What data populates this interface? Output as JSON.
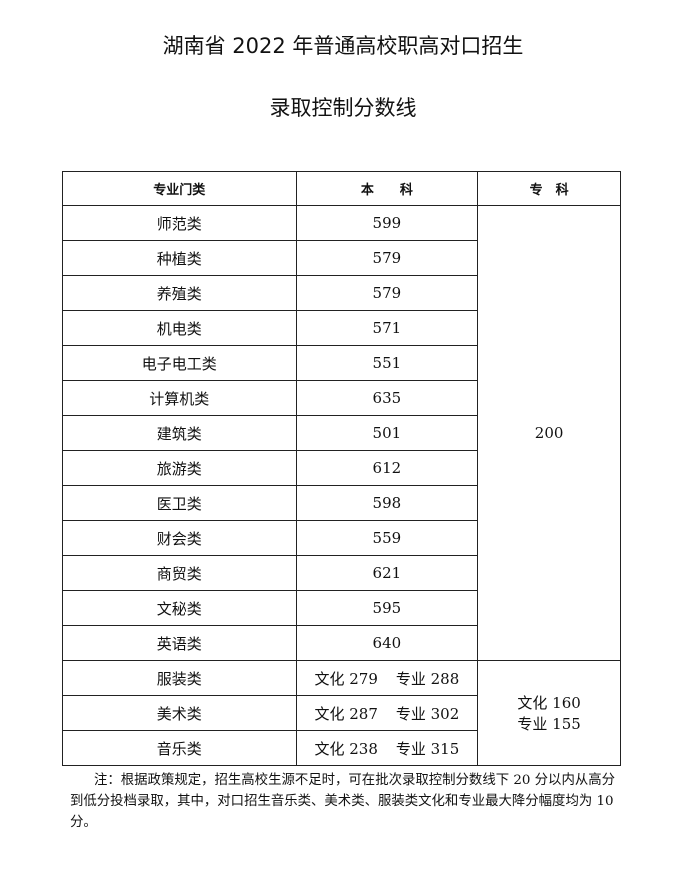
{
  "title_line1": "湖南省 2022 年普通高校职高对口招生",
  "title_line2": "录取控制分数线",
  "table": {
    "headers": [
      "专业门类",
      "本　　科",
      "专　科"
    ],
    "rows": [
      {
        "category": "师范类",
        "undergrad": "599"
      },
      {
        "category": "种植类",
        "undergrad": "579"
      },
      {
        "category": "养殖类",
        "undergrad": "579"
      },
      {
        "category": "机电类",
        "undergrad": "571"
      },
      {
        "category": "电子电工类",
        "undergrad": "551"
      },
      {
        "category": "计算机类",
        "undergrad": "635"
      },
      {
        "category": "建筑类",
        "undergrad": "501"
      },
      {
        "category": "旅游类",
        "undergrad": "612"
      },
      {
        "category": "医卫类",
        "undergrad": "598"
      },
      {
        "category": "财会类",
        "undergrad": "559"
      },
      {
        "category": "商贸类",
        "undergrad": "621"
      },
      {
        "category": "文秘类",
        "undergrad": "595"
      },
      {
        "category": "英语类",
        "undergrad": "640"
      }
    ],
    "junior_college_common": "200",
    "arts_rows": [
      {
        "category": "服装类",
        "culture": "文化 279",
        "major": "专业 288"
      },
      {
        "category": "美术类",
        "culture": "文化 287",
        "major": "专业 302"
      },
      {
        "category": "音乐类",
        "culture": "文化 238",
        "major": "专业 315"
      }
    ],
    "arts_junior_culture": "文化 160",
    "arts_junior_major": "专业 155"
  },
  "note": "注：根据政策规定，招生高校生源不足时，可在批次录取控制分数线下 20 分以内从高分到低分投档录取，其中，对口招生音乐类、美术类、服装类文化和专业最大降分幅度均为 10  分。"
}
